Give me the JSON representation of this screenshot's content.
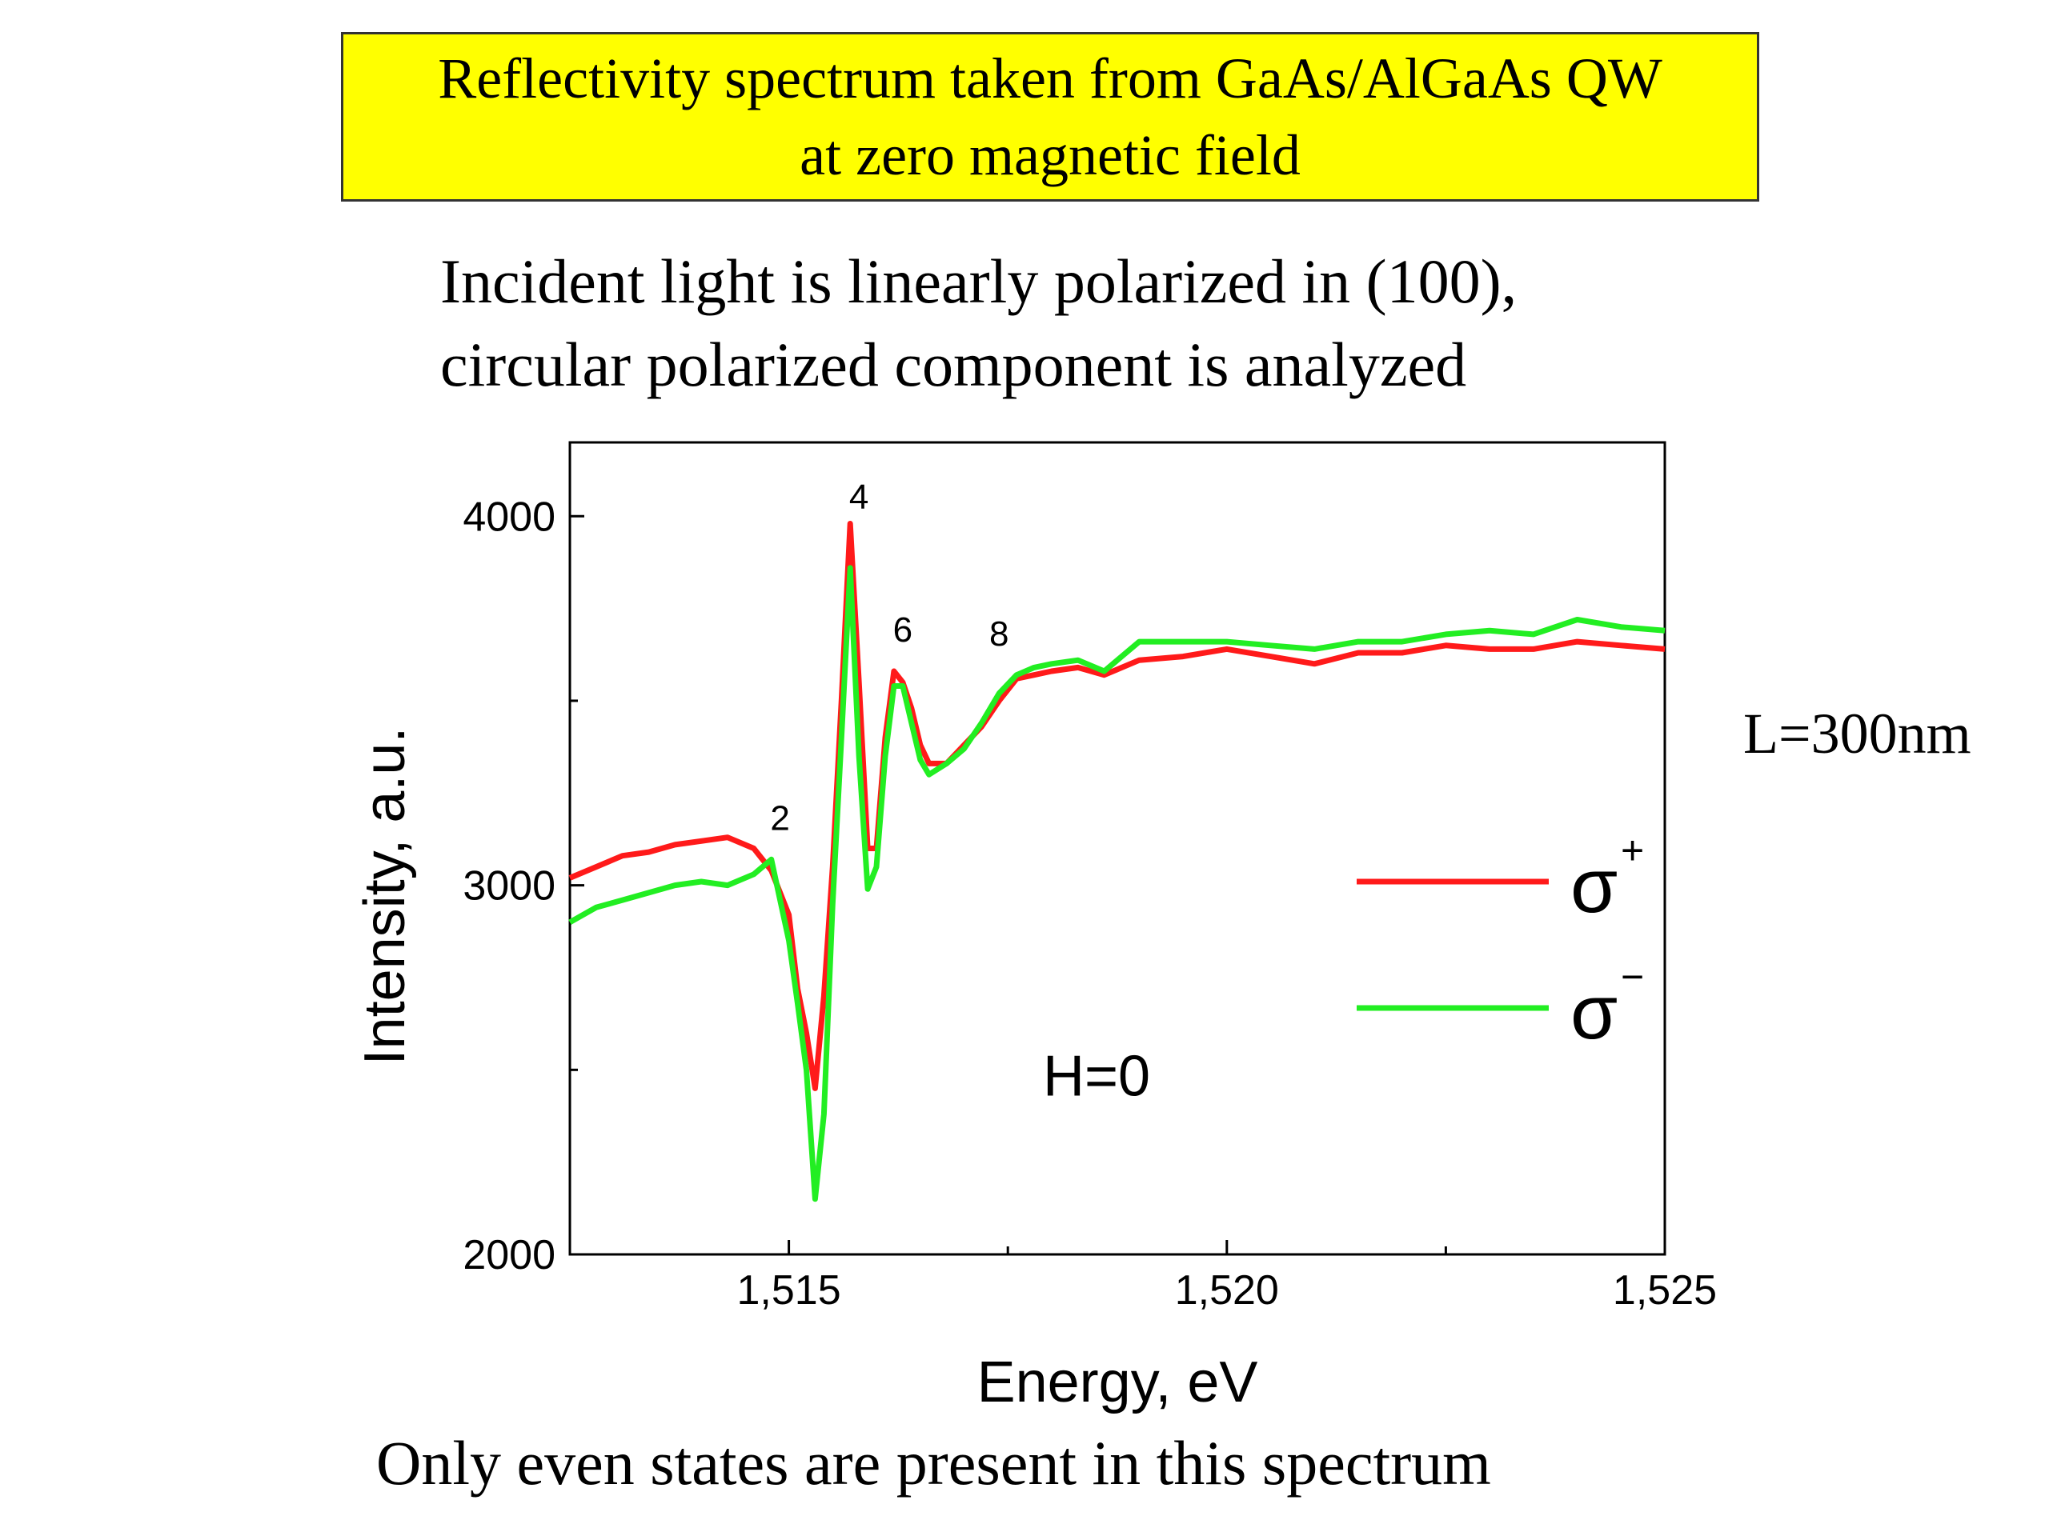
{
  "header": {
    "title_line1": "Reflectivity spectrum taken from GaAs/AlGaAs QW",
    "title_line2": "at zero magnetic field"
  },
  "subtitle": {
    "line1": "Incident light is linearly polarized in (100),",
    "line2": "circular polarized component is analyzed"
  },
  "side_note": "L=300nm",
  "footnote": "Only even states are present in this spectrum",
  "chart_data": {
    "type": "line",
    "xlabel": "Energy, eV",
    "ylabel": "Intensity, a.u.",
    "xlim": [
      1.5125,
      1.525
    ],
    "ylim": [
      2000,
      4200
    ],
    "x_ticks": [
      {
        "value": 1.515,
        "label": "1,515"
      },
      {
        "value": 1.52,
        "label": "1,520"
      },
      {
        "value": 1.525,
        "label": "1,525"
      }
    ],
    "y_ticks": [
      {
        "value": 2000,
        "label": "2000"
      },
      {
        "value": 3000,
        "label": "3000"
      },
      {
        "value": 4000,
        "label": "4000"
      }
    ],
    "annotations": [
      {
        "text": "2",
        "x": 1.5149,
        "y": 3150
      },
      {
        "text": "4",
        "x": 1.5158,
        "y": 4020
      },
      {
        "text": "6",
        "x": 1.5163,
        "y": 3660
      },
      {
        "text": "8",
        "x": 1.5174,
        "y": 3650
      },
      {
        "text": "H=0",
        "x": 1.5179,
        "y": 2430
      }
    ],
    "legend_position": "right",
    "series": [
      {
        "name": "σ+",
        "legend_sup": "+",
        "color": "#ff1a1a",
        "x": [
          1.5125,
          1.5128,
          1.5131,
          1.5134,
          1.5137,
          1.514,
          1.5143,
          1.5146,
          1.5148,
          1.515,
          1.5151,
          1.5152,
          1.5153,
          1.5154,
          1.5155,
          1.5156,
          1.5157,
          1.5158,
          1.5159,
          1.516,
          1.5161,
          1.5162,
          1.5163,
          1.5164,
          1.5165,
          1.5166,
          1.5168,
          1.517,
          1.5172,
          1.5174,
          1.5176,
          1.5178,
          1.518,
          1.5183,
          1.5186,
          1.519,
          1.5195,
          1.52,
          1.5205,
          1.521,
          1.5215,
          1.522,
          1.5225,
          1.523,
          1.5235,
          1.524,
          1.5245,
          1.525
        ],
        "y": [
          3020,
          3050,
          3080,
          3090,
          3110,
          3120,
          3130,
          3100,
          3040,
          2920,
          2720,
          2600,
          2450,
          2700,
          3050,
          3500,
          3980,
          3550,
          3100,
          3100,
          3400,
          3580,
          3550,
          3480,
          3380,
          3330,
          3330,
          3380,
          3430,
          3500,
          3560,
          3570,
          3580,
          3590,
          3570,
          3610,
          3620,
          3640,
          3620,
          3600,
          3630,
          3630,
          3650,
          3640,
          3640,
          3660,
          3650,
          3640
        ]
      },
      {
        "name": "σ−",
        "legend_sup": "−",
        "color": "#22ee22",
        "x": [
          1.5125,
          1.5128,
          1.5131,
          1.5134,
          1.5137,
          1.514,
          1.5143,
          1.5146,
          1.5148,
          1.515,
          1.5151,
          1.5152,
          1.5153,
          1.5154,
          1.5155,
          1.5156,
          1.5157,
          1.5158,
          1.5159,
          1.516,
          1.5161,
          1.5162,
          1.5163,
          1.5164,
          1.5165,
          1.5166,
          1.5168,
          1.517,
          1.5172,
          1.5174,
          1.5176,
          1.5178,
          1.518,
          1.5183,
          1.5186,
          1.519,
          1.5195,
          1.52,
          1.5205,
          1.521,
          1.5215,
          1.522,
          1.5225,
          1.523,
          1.5235,
          1.524,
          1.5245,
          1.525
        ],
        "y": [
          2900,
          2940,
          2960,
          2980,
          3000,
          3010,
          3000,
          3030,
          3070,
          2850,
          2680,
          2500,
          2150,
          2380,
          2950,
          3400,
          3860,
          3350,
          2990,
          3050,
          3350,
          3540,
          3540,
          3440,
          3340,
          3300,
          3330,
          3370,
          3440,
          3520,
          3570,
          3590,
          3600,
          3610,
          3580,
          3660,
          3660,
          3660,
          3650,
          3640,
          3660,
          3660,
          3680,
          3690,
          3680,
          3720,
          3700,
          3690
        ]
      }
    ]
  }
}
